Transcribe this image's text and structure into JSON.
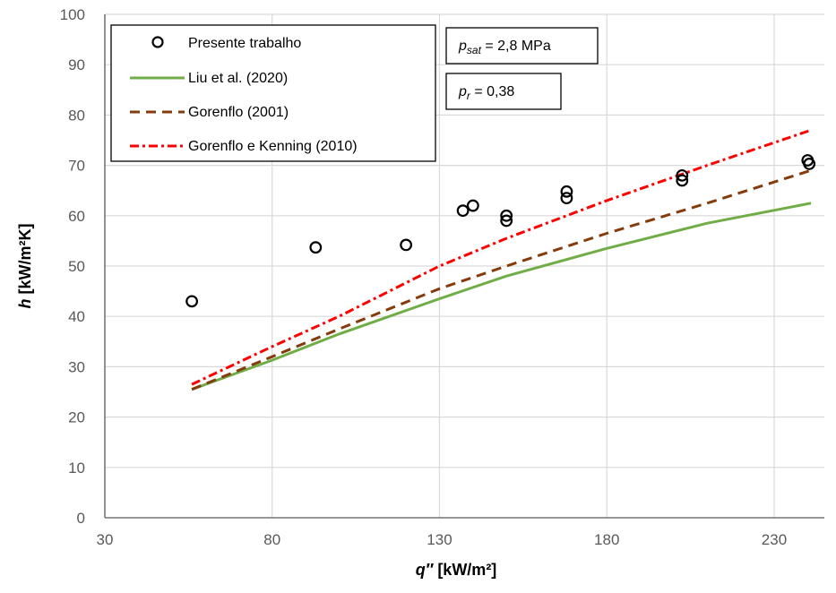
{
  "chart_data": {
    "type": "scatter",
    "xlabel": {
      "var": "q″",
      "unit": " [kW/m²]"
    },
    "ylabel": {
      "var": "h",
      "unit": " [kW/m²K]"
    },
    "xlim": [
      30,
      245
    ],
    "ylim": [
      0,
      100
    ],
    "x_ticks": [
      30,
      80,
      130,
      180,
      230
    ],
    "y_ticks": [
      0,
      10,
      20,
      30,
      40,
      50,
      60,
      70,
      80,
      90,
      100
    ],
    "grid": true,
    "legend_position": "top-left",
    "series": [
      {
        "name": "Presente trabalho",
        "kind": "scatter",
        "marker": "open-circle",
        "color": "#000000",
        "points": [
          [
            56,
            43.0
          ],
          [
            93,
            53.7
          ],
          [
            120,
            54.2
          ],
          [
            137,
            61.0
          ],
          [
            140,
            62.0
          ],
          [
            150,
            59.0
          ],
          [
            150,
            60.0
          ],
          [
            168,
            63.5
          ],
          [
            168,
            64.8
          ],
          [
            202.5,
            67.0
          ],
          [
            202.5,
            68.0
          ],
          [
            240,
            71.0
          ],
          [
            240.5,
            70.3
          ]
        ]
      },
      {
        "name": "Liu et al. (2020)",
        "kind": "line",
        "dash": "solid",
        "color": "#70AD47",
        "points": [
          [
            56,
            25.5
          ],
          [
            80,
            31.3
          ],
          [
            100,
            36.5
          ],
          [
            130,
            43.5
          ],
          [
            150,
            48.0
          ],
          [
            180,
            53.5
          ],
          [
            210,
            58.5
          ],
          [
            241,
            62.5
          ]
        ]
      },
      {
        "name": "Gorenflo (2001)",
        "kind": "line",
        "dash": "dash",
        "color": "#843C0C",
        "points": [
          [
            56,
            25.5
          ],
          [
            80,
            32.0
          ],
          [
            100,
            37.5
          ],
          [
            130,
            45.5
          ],
          [
            150,
            50.0
          ],
          [
            180,
            56.5
          ],
          [
            210,
            62.5
          ],
          [
            241,
            69.0
          ]
        ]
      },
      {
        "name": "Gorenflo e Kenning (2010)",
        "kind": "line",
        "dash": "dashdot",
        "color": "#FF0000",
        "points": [
          [
            56,
            26.5
          ],
          [
            80,
            34.0
          ],
          [
            100,
            40.0
          ],
          [
            130,
            50.0
          ],
          [
            150,
            55.5
          ],
          [
            180,
            63.0
          ],
          [
            210,
            70.0
          ],
          [
            241,
            77.0
          ]
        ]
      }
    ],
    "annotations": [
      {
        "id": "psat",
        "var": "p",
        "sub": "sat",
        "text": " = 2,8 MPa"
      },
      {
        "id": "pr",
        "var": "p",
        "sub": "r",
        "text": " = 0,38"
      }
    ]
  }
}
